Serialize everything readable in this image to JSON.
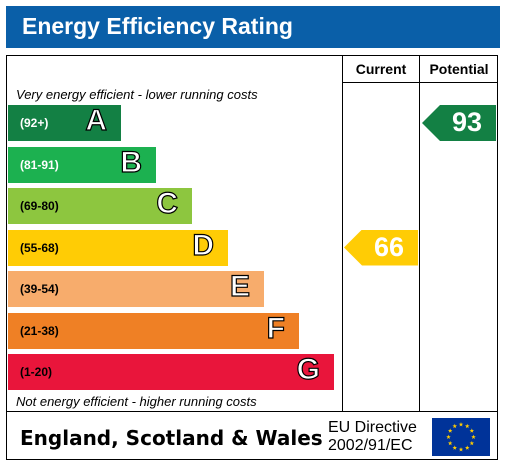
{
  "header": {
    "title": "Energy Efficiency Rating"
  },
  "columns": {
    "current": "Current",
    "potential": "Potential"
  },
  "notes": {
    "top": "Very energy efficient - lower running costs",
    "bottom": "Not energy efficient - higher running costs"
  },
  "chart_data": {
    "type": "bar",
    "title": "Energy Efficiency Rating",
    "bands": [
      {
        "range": "(92+)",
        "letter": "A",
        "color": "#138044"
      },
      {
        "range": "(81-91)",
        "letter": "B",
        "color": "#1cb150"
      },
      {
        "range": "(69-80)",
        "letter": "C",
        "color": "#8dc63f"
      },
      {
        "range": "(55-68)",
        "letter": "D",
        "color": "#ffcc05"
      },
      {
        "range": "(39-54)",
        "letter": "E",
        "color": "#f7ac6c"
      },
      {
        "range": "(21-38)",
        "letter": "F",
        "color": "#ef8025"
      },
      {
        "range": "(1-20)",
        "letter": "G",
        "color": "#e9153b"
      }
    ],
    "current": {
      "value": 66,
      "band": "D",
      "color": "#ffcc05"
    },
    "potential": {
      "value": 93,
      "band": "A",
      "color": "#138044"
    }
  },
  "footer": {
    "region": "England, Scotland & Wales",
    "directive_line1": "EU Directive",
    "directive_line2": "2002/91/EC",
    "flag_color": "#003399",
    "star_color": "#ffcc00"
  }
}
